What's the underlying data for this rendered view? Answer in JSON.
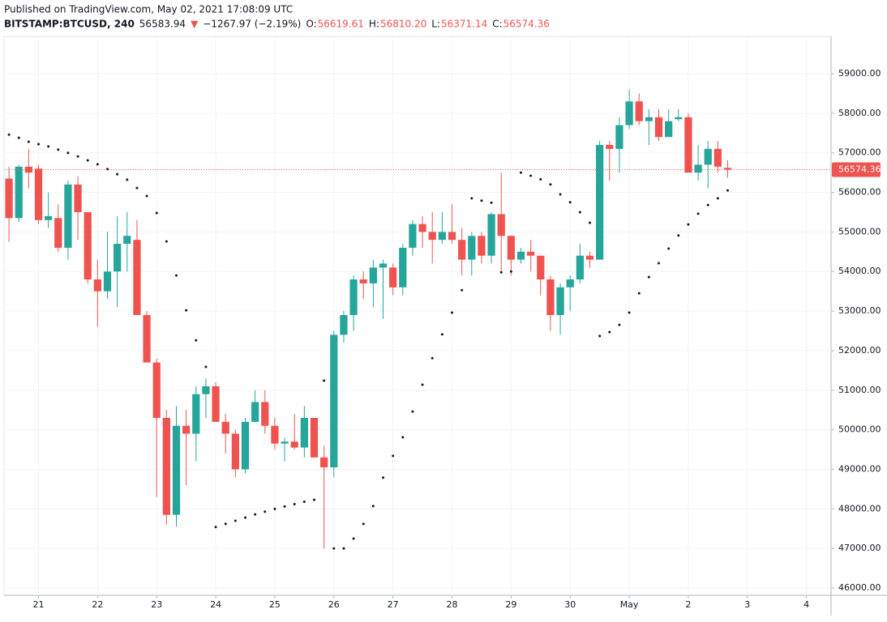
{
  "header": {
    "published": "Published on TradingView.com, May 02, 2021 17:08:09 UTC",
    "symbol": "BITSTAMP:BTCUSD, 240",
    "last": 56583.94,
    "arrow": "▼",
    "change": "−1267.97 (−2.19%)",
    "o_label": "O:",
    "o_value": "56619.61",
    "h_label": "H:",
    "h_value": "56810.20",
    "l_label": "L:",
    "l_value": "56371.14",
    "c_label": "C:",
    "c_value": "56574.36"
  },
  "chart_data": {
    "type": "candlestick",
    "up_color": "#26a69a",
    "down_color": "#ef5350",
    "sar_color": "#131722",
    "grid": true,
    "categories": [
      null,
      null,
      null,
      "21",
      null,
      null,
      null,
      null,
      null,
      "22",
      null,
      null,
      null,
      null,
      null,
      "23",
      null,
      null,
      null,
      null,
      null,
      "24",
      null,
      null,
      null,
      null,
      null,
      "25",
      null,
      null,
      null,
      null,
      null,
      "26",
      null,
      null,
      null,
      null,
      null,
      "27",
      null,
      null,
      null,
      null,
      null,
      "28",
      null,
      null,
      null,
      null,
      null,
      "29",
      null,
      null,
      null,
      null,
      null,
      "30",
      null,
      null,
      null,
      null,
      null,
      "May",
      null,
      null,
      null,
      null,
      null,
      "2",
      null,
      null,
      null,
      null,
      null,
      "3",
      null,
      null,
      null,
      null,
      null,
      "4",
      null,
      null
    ],
    "open": [
      56350,
      55350,
      56650,
      56600,
      55300,
      55350,
      54600,
      56200,
      55500,
      53800,
      53500,
      54000,
      54700,
      54800,
      52900,
      51700,
      50300,
      47850,
      50100,
      49900,
      50900,
      51100,
      50200,
      49900,
      49000,
      50200,
      50700,
      50100,
      49650,
      49700,
      49550,
      50300,
      49300,
      49050,
      52400,
      52900,
      53800,
      53700,
      54100,
      54100,
      53600,
      54600,
      55200,
      55000,
      54800,
      55000,
      54800,
      54300,
      54900,
      54400,
      55450,
      54900,
      54300,
      54500,
      54400,
      53800,
      52900,
      53600,
      53800,
      54400,
      54300,
      57200,
      57100,
      57700,
      58300,
      57800,
      57900,
      57400,
      57850,
      57900,
      56500,
      56700,
      57100,
      56619.61,
      null,
      null,
      null,
      null,
      null,
      null,
      null,
      null,
      null,
      null
    ],
    "high": [
      56650,
      56700,
      57100,
      56700,
      56000,
      55700,
      56300,
      56400,
      55500,
      54300,
      55000,
      55400,
      55500,
      55300,
      53000,
      51800,
      50500,
      50600,
      50500,
      51100,
      51300,
      51200,
      50400,
      50000,
      50300,
      51000,
      51000,
      50300,
      49800,
      50400,
      50600,
      50300,
      49600,
      52500,
      53000,
      53900,
      54000,
      54300,
      54300,
      54200,
      54700,
      55300,
      55400,
      55500,
      55500,
      55700,
      55100,
      55000,
      55000,
      55500,
      56500,
      54900,
      54600,
      54800,
      54400,
      53900,
      53700,
      53900,
      54700,
      54500,
      57300,
      57300,
      57900,
      58600,
      58500,
      58100,
      58100,
      58100,
      58100,
      58000,
      57200,
      57300,
      57300,
      56810.2,
      null,
      null,
      null,
      null,
      null,
      null,
      null,
      null,
      null,
      null
    ],
    "low": [
      54750,
      55250,
      56100,
      55200,
      55100,
      54500,
      54300,
      54800,
      53700,
      52600,
      53300,
      53100,
      54000,
      52900,
      51700,
      48300,
      47600,
      47550,
      48600,
      49200,
      50300,
      50200,
      49400,
      48800,
      48900,
      50200,
      49900,
      49500,
      49200,
      49500,
      49300,
      49300,
      47000,
      48800,
      52200,
      52500,
      53300,
      53100,
      52800,
      53400,
      53400,
      54400,
      54600,
      54200,
      54700,
      54700,
      53900,
      53900,
      54200,
      54200,
      54000,
      53900,
      54200,
      54000,
      53400,
      52500,
      52400,
      53000,
      53700,
      54100,
      54300,
      56300,
      56500,
      57600,
      57700,
      57200,
      57300,
      57400,
      57800,
      56500,
      56300,
      56100,
      56500,
      56371.14,
      null,
      null,
      null,
      null,
      null,
      null,
      null,
      null,
      null,
      null
    ],
    "close": [
      55350,
      56650,
      56500,
      55300,
      55400,
      54600,
      56200,
      55500,
      53800,
      53500,
      54000,
      54700,
      54900,
      52900,
      51700,
      50300,
      47850,
      50100,
      49900,
      50900,
      51100,
      50200,
      49900,
      49000,
      50200,
      50700,
      50100,
      49650,
      49700,
      49550,
      50300,
      49300,
      49050,
      52400,
      52900,
      53800,
      53700,
      54100,
      54200,
      53600,
      54600,
      55200,
      55000,
      54800,
      55000,
      54800,
      54300,
      54900,
      54400,
      55450,
      54900,
      54300,
      54500,
      54400,
      53800,
      52900,
      53600,
      53800,
      54400,
      54300,
      57200,
      57100,
      57700,
      58300,
      57800,
      57900,
      57400,
      57800,
      57900,
      56500,
      56700,
      57100,
      56650,
      56574.36,
      null,
      null,
      null,
      null,
      null,
      null,
      null,
      null,
      null,
      null
    ],
    "sar_values": [
      57460,
      57380,
      57280,
      57220,
      57160,
      57080,
      57000,
      56910,
      56810,
      56710,
      56590,
      56460,
      56320,
      56110,
      55910,
      55480,
      54760,
      53900,
      53020,
      52260,
      51590,
      47540,
      47620,
      47700,
      47780,
      47860,
      47930,
      48000,
      48060,
      48120,
      48180,
      48230,
      51240,
      47000,
      47000,
      47250,
      47620,
      48070,
      48790,
      49340,
      49810,
      50460,
      51140,
      51810,
      52410,
      52960,
      53530,
      55850,
      55790,
      55740,
      53980,
      54000,
      56500,
      56420,
      56330,
      56200,
      55950,
      55750,
      55500,
      55230,
      52370,
      52470,
      52650,
      52960,
      53450,
      53860,
      54210,
      54580,
      54910,
      55190,
      55460,
      55680,
      55850,
      56050,
      null,
      null,
      null,
      null,
      null,
      null,
      null,
      null,
      null,
      null
    ],
    "ylim": [
      45816,
      59942
    ],
    "yticks": [
      {
        "value": 46000,
        "label": "46000.00"
      },
      {
        "value": 47000,
        "label": "47000.00"
      },
      {
        "value": 48000,
        "label": "48000.00"
      },
      {
        "value": 49000,
        "label": "49000.00"
      },
      {
        "value": 50000,
        "label": "50000.00"
      },
      {
        "value": 51000,
        "label": "51000.00"
      },
      {
        "value": 52000,
        "label": "52000.00"
      },
      {
        "value": 53000,
        "label": "53000.00"
      },
      {
        "value": 54000,
        "label": "54000.00"
      },
      {
        "value": 55000,
        "label": "55000.00"
      },
      {
        "value": 56000,
        "label": "56000.00"
      },
      {
        "value": 57000,
        "label": "57000.00"
      },
      {
        "value": 58000,
        "label": "58000.00"
      },
      {
        "value": 59000,
        "label": "59000.00"
      }
    ]
  }
}
